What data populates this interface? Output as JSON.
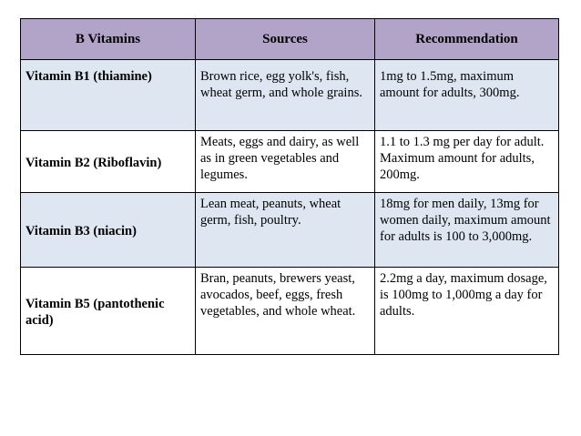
{
  "table": {
    "headers": [
      "B Vitamins",
      "Sources",
      "Recommendation"
    ],
    "rows": [
      {
        "name": "Vitamin B1 (thiamine)",
        "sources": "Brown rice, egg yolk's, fish, wheat germ, and whole grains.",
        "recommendation": "1mg to 1.5mg, maximum amount for adults, 300mg."
      },
      {
        "name": "Vitamin B2 (Riboflavin)",
        "sources": "Meats, eggs and dairy, as well as in green vegetables and legumes.",
        "recommendation": "1.1 to 1.3 mg per day for adult. Maximum amount for adults, 200mg."
      },
      {
        "name": "Vitamin B3 (niacin)",
        "sources": "Lean meat, peanuts, wheat germ, fish, poultry.",
        "recommendation": "18mg for men daily, 13mg for women daily, maximum amount for adults is 100 to 3,000mg."
      },
      {
        "name": "Vitamin B5 (pantothenic acid)",
        "sources": "Bran, peanuts, brewers yeast, avocados, beef, eggs, fresh vegetables, and whole wheat.",
        "recommendation": "2.2mg a day, maximum dosage, is 100mg to 1,000mg a day for adults."
      }
    ]
  },
  "colors": {
    "header_bg": "#b2a4c9",
    "shaded_row_bg": "#dde6f1",
    "plain_row_bg": "#ffffff",
    "border": "#000000"
  }
}
